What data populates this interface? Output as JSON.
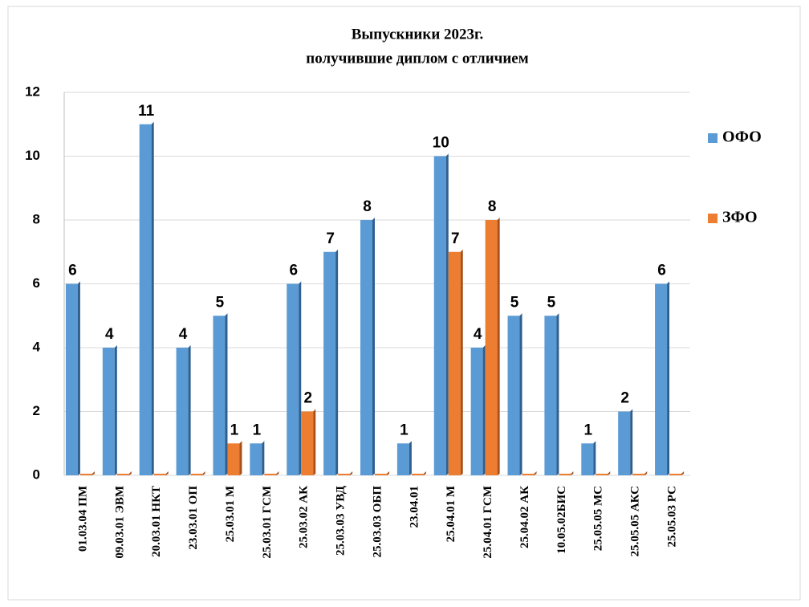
{
  "chart_data": {
    "type": "bar",
    "title": [
      "Выпускники  2023г.",
      "получившие диплом  с отличием"
    ],
    "categories": [
      "01.03.04 ПМ",
      "09.03.01 ЭВМ",
      "20.03.01 НКТ",
      "23.03.01 ОП",
      "25.03.01 М",
      "25.03.01 ГСМ",
      "25.03.02 АК",
      "25.03.03 УВД",
      "25.03.03 ОБП",
      "23.04.01",
      "25.04.01 М",
      "25.04.01 ГСМ",
      "25.04.02 АК",
      "10.05.02БИС",
      "25.05.05 МС",
      "25.05.05 АКС",
      "25.05.03 РС"
    ],
    "series": [
      {
        "name": "ОФО",
        "color": "#5b9bd5",
        "values": [
          6,
          4,
          11,
          4,
          5,
          1,
          6,
          7,
          8,
          1,
          10,
          4,
          5,
          5,
          1,
          2,
          6
        ]
      },
      {
        "name": "ЗФО",
        "color": "#ed7d31",
        "values": [
          0,
          0,
          0,
          0,
          1,
          0,
          2,
          0,
          0,
          0,
          7,
          8,
          0,
          0,
          0,
          0,
          0
        ]
      }
    ],
    "ylim": [
      0,
      12
    ],
    "yticks": [
      0,
      2,
      4,
      6,
      8,
      10,
      12
    ],
    "grid": true,
    "legend": "right"
  }
}
